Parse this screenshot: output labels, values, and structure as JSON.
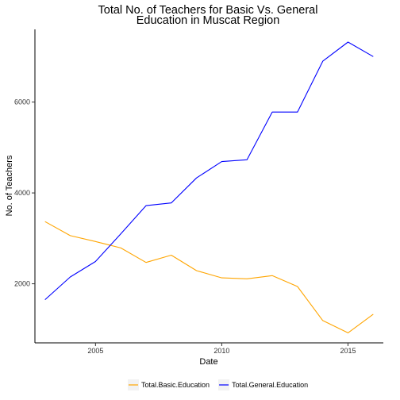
{
  "chart_data": {
    "type": "line",
    "title_lines": [
      "Total No. of Teachers for Basic Vs. General",
      "Education in Muscat Region"
    ],
    "xlabel": "Date",
    "ylabel": "No. of Teachers",
    "xlim": [
      2002.6,
      2016.4
    ],
    "ylim": [
      700,
      7600
    ],
    "x_ticks": [
      2005,
      2010,
      2015
    ],
    "y_ticks": [
      2000,
      4000,
      6000
    ],
    "grid": false,
    "legend_position": "bottom",
    "x": [
      2003,
      2004,
      2005,
      2006,
      2007,
      2008,
      2009,
      2010,
      2011,
      2012,
      2013,
      2014,
      2015,
      2016
    ],
    "series": [
      {
        "name": "Total.Basic.Education",
        "color": "#FFA500",
        "values": [
          3370,
          3060,
          2930,
          2790,
          2470,
          2630,
          2290,
          2130,
          2110,
          2180,
          1940,
          1190,
          920,
          1330
        ]
      },
      {
        "name": "Total.General.Education",
        "color": "#0000FF",
        "values": [
          1650,
          2150,
          2490,
          3100,
          3720,
          3780,
          4330,
          4690,
          4730,
          5780,
          5780,
          6900,
          7320,
          7000
        ]
      }
    ]
  }
}
